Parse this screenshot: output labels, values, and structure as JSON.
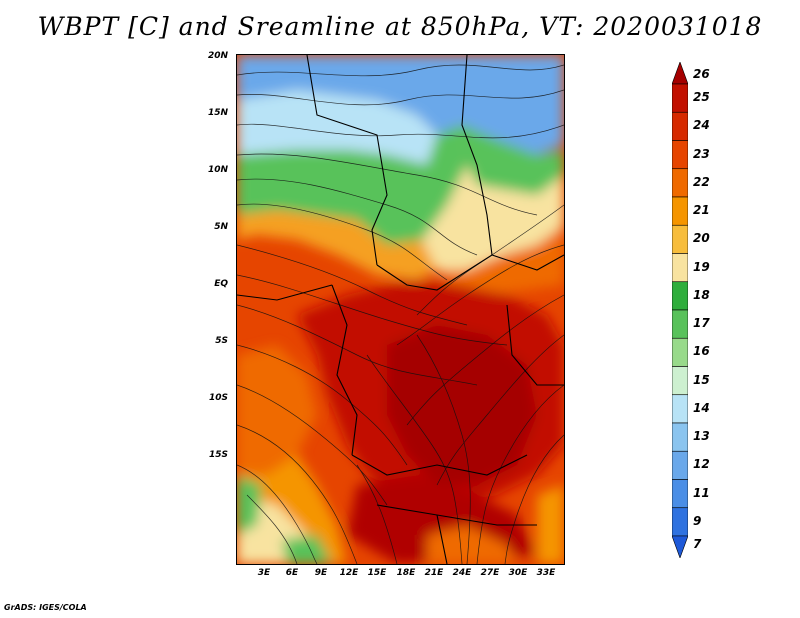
{
  "title": "WBPT [C] and Sreamline at 850hPa, VT: 2020031018",
  "credit": "GrADS: IGES/COLA",
  "lat_labels": [
    "20N",
    "15N",
    "10N",
    "5N",
    "EQ",
    "5S",
    "10S",
    "15S"
  ],
  "lon_labels": [
    "3E",
    "6E",
    "9E",
    "12E",
    "15E",
    "18E",
    "21E",
    "24E",
    "27E",
    "30E",
    "33E"
  ],
  "colorbar": {
    "labels": [
      "26",
      "25",
      "24",
      "23",
      "22",
      "21",
      "20",
      "19",
      "18",
      "17",
      "16",
      "15",
      "14",
      "13",
      "12",
      "11",
      "9",
      "7"
    ],
    "colors": [
      "#a50000",
      "#c21000",
      "#d62a00",
      "#e64500",
      "#ef6a00",
      "#f59500",
      "#f7bd3c",
      "#f8e3a0",
      "#2fae3c",
      "#58c25a",
      "#98da8a",
      "#cdf0d0",
      "#b8e3f6",
      "#8ac4ef",
      "#6aa8ea",
      "#4a8ee6",
      "#2f72e0",
      "#1e59d8"
    ]
  }
}
